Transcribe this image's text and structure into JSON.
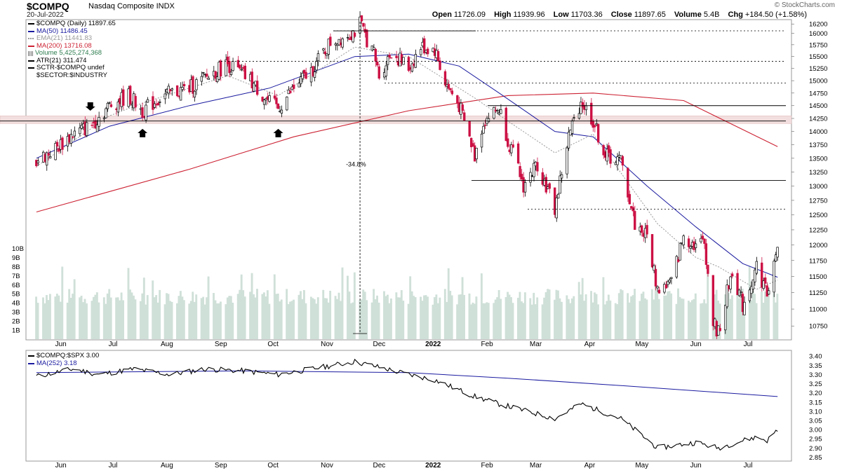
{
  "header": {
    "ticker": "$COMPQ",
    "description": "Nasdaq Composite INDX",
    "date": "20-Jul-2022",
    "open_label": "Open",
    "open": "11726.09",
    "high_label": "High",
    "high": "11939.96",
    "low_label": "Low",
    "low": "11703.36",
    "close_label": "Close",
    "close": "11897.65",
    "volume_label": "Volume",
    "volume": "5.4B",
    "chg_label": "Chg",
    "chg": "+184.50 (+1.58%)",
    "watermark": "© StockCharts.com"
  },
  "legend_main": [
    {
      "text": "$COMPQ (Daily) 11897.65",
      "color": "#000000",
      "kind": "line"
    },
    {
      "text": "MA(50) 11486.45",
      "color": "#1a1aa0",
      "kind": "line"
    },
    {
      "text": "EMA(21) 11441.83",
      "color": "#999999",
      "kind": "dotted"
    },
    {
      "text": "MA(200) 13716.08",
      "color": "#cc2233",
      "kind": "line"
    },
    {
      "text": "Volume 5,425,274,368",
      "color": "#2e7d4f",
      "kind": "bars"
    },
    {
      "text": "ATR(21) 311.474",
      "color": "#000000",
      "kind": "line"
    },
    {
      "text": "SCTR-$COMPQ undef",
      "color": "#000000",
      "kind": "line"
    },
    {
      "text": "$SECTOR:$INDUSTRY",
      "color": "#000000",
      "kind": "none"
    }
  ],
  "legend_rs": [
    {
      "text": "$COMPQ:$SPX 3.00",
      "color": "#000000",
      "kind": "line"
    },
    {
      "text": "MA(252) 3.18",
      "color": "#1a1aa0",
      "kind": "line"
    }
  ],
  "chart_data": [
    {
      "type": "candlestick",
      "title": "$COMPQ Nasdaq Composite INDX (Daily)",
      "x_labels": [
        "Jun",
        "Jul",
        "Aug",
        "Sep",
        "Oct",
        "Nov",
        "Dec",
        "2022",
        "Feb",
        "Mar",
        "Apr",
        "May",
        "Jun",
        "Jul"
      ],
      "y_ticks": [
        16200,
        16000,
        15750,
        15500,
        15250,
        15000,
        14750,
        14500,
        14250,
        14000,
        13750,
        13500,
        13250,
        13000,
        12750,
        12500,
        12250,
        12000,
        11750,
        11500,
        11250,
        11000,
        10750
      ],
      "ylim": [
        10600,
        16250
      ],
      "scale": "log",
      "grid": false,
      "legend_position": "top-left",
      "colors": {
        "up": "#000000",
        "down": "#cc1144",
        "ma50": "#1a1aa0",
        "ema21": "#999999",
        "ma200": "#cc2233",
        "volume": "#cfe0d8",
        "support_band": "#f2dede"
      },
      "price_path": [
        [
          "2021-05-20",
          13450
        ],
        [
          "2021-06-01",
          13700
        ],
        [
          "2021-06-10",
          13950
        ],
        [
          "2021-06-20",
          14100
        ],
        [
          "2021-07-01",
          14500
        ],
        [
          "2021-07-12",
          14700
        ],
        [
          "2021-07-20",
          14400
        ],
        [
          "2021-08-01",
          14700
        ],
        [
          "2021-08-16",
          14850
        ],
        [
          "2021-08-25",
          15050
        ],
        [
          "2021-09-07",
          15350
        ],
        [
          "2021-09-20",
          15000
        ],
        [
          "2021-10-01",
          14550
        ],
        [
          "2021-10-06",
          14450
        ],
        [
          "2021-10-15",
          14850
        ],
        [
          "2021-10-25",
          15200
        ],
        [
          "2021-11-05",
          15800
        ],
        [
          "2021-11-19",
          16050
        ],
        [
          "2021-11-22",
          16200
        ],
        [
          "2021-11-30",
          15550
        ],
        [
          "2021-12-03",
          15100
        ],
        [
          "2021-12-10",
          15600
        ],
        [
          "2021-12-20",
          15250
        ],
        [
          "2021-12-27",
          15700
        ],
        [
          "2022-01-04",
          15650
        ],
        [
          "2022-01-10",
          14950
        ],
        [
          "2022-01-18",
          14500
        ],
        [
          "2022-01-27",
          13550
        ],
        [
          "2022-02-01",
          14200
        ],
        [
          "2022-02-10",
          14450
        ],
        [
          "2022-02-15",
          13850
        ],
        [
          "2022-02-24",
          13000
        ],
        [
          "2022-03-04",
          13400
        ],
        [
          "2022-03-14",
          12600
        ],
        [
          "2022-03-22",
          13900
        ],
        [
          "2022-03-29",
          14600
        ],
        [
          "2022-04-05",
          14200
        ],
        [
          "2022-04-12",
          13550
        ],
        [
          "2022-04-21",
          13450
        ],
        [
          "2022-04-29",
          12350
        ],
        [
          "2022-05-06",
          12150
        ],
        [
          "2022-05-12",
          11300
        ],
        [
          "2022-05-20",
          11400
        ],
        [
          "2022-05-27",
          12150
        ],
        [
          "2022-06-03",
          12000
        ],
        [
          "2022-06-08",
          12050
        ],
        [
          "2022-06-13",
          10800
        ],
        [
          "2022-06-16",
          10650
        ],
        [
          "2022-06-24",
          11600
        ],
        [
          "2022-06-30",
          11050
        ],
        [
          "2022-07-08",
          11650
        ],
        [
          "2022-07-14",
          11250
        ],
        [
          "2022-07-20",
          11898
        ]
      ],
      "ma50_path": [
        [
          "2021-05-20",
          13500
        ],
        [
          "2021-07-01",
          14100
        ],
        [
          "2021-08-16",
          14500
        ],
        [
          "2021-10-01",
          14850
        ],
        [
          "2021-11-19",
          15500
        ],
        [
          "2021-12-20",
          15550
        ],
        [
          "2022-01-18",
          15300
        ],
        [
          "2022-02-10",
          14750
        ],
        [
          "2022-03-14",
          14000
        ],
        [
          "2022-04-05",
          13900
        ],
        [
          "2022-05-06",
          13000
        ],
        [
          "2022-06-03",
          12300
        ],
        [
          "2022-06-30",
          11700
        ],
        [
          "2022-07-20",
          11486
        ]
      ],
      "ema21_path": [
        [
          "2021-05-20",
          13350
        ],
        [
          "2021-07-01",
          14300
        ],
        [
          "2021-07-20",
          14550
        ],
        [
          "2021-09-07",
          15100
        ],
        [
          "2021-10-06",
          14700
        ],
        [
          "2021-11-19",
          15700
        ],
        [
          "2021-12-20",
          15500
        ],
        [
          "2022-01-27",
          14650
        ],
        [
          "2022-02-15",
          14200
        ],
        [
          "2022-03-14",
          13600
        ],
        [
          "2022-04-05",
          13950
        ],
        [
          "2022-05-12",
          12350
        ],
        [
          "2022-06-03",
          11800
        ],
        [
          "2022-06-16",
          11650
        ],
        [
          "2022-07-08",
          11300
        ],
        [
          "2022-07-20",
          11442
        ]
      ],
      "ma200_path": [
        [
          "2021-05-20",
          12550
        ],
        [
          "2021-08-16",
          13300
        ],
        [
          "2021-10-15",
          13900
        ],
        [
          "2021-12-20",
          14400
        ],
        [
          "2022-02-15",
          14700
        ],
        [
          "2022-04-05",
          14750
        ],
        [
          "2022-05-27",
          14600
        ],
        [
          "2022-07-20",
          13716
        ]
      ],
      "annotations": {
        "drawdown_label": "-34.8%",
        "support_band": [
          14150,
          14300
        ],
        "dotted_levels": [
          16050,
          15400,
          14950,
          12600
        ],
        "solid_levels": [
          14500,
          14200,
          13100
        ]
      },
      "volume": {
        "y_ticks_billions": [
          10,
          9,
          8,
          7,
          6,
          5,
          4,
          3,
          2,
          1
        ],
        "tick_labels": [
          "10B",
          "9B",
          "8B",
          "7B",
          "6B",
          "5B",
          "4B",
          "3B",
          "2B",
          "1B"
        ],
        "typical_range_billions": [
          4,
          6
        ],
        "latest_billions": 5.4
      }
    },
    {
      "type": "line",
      "title": "$COMPQ:$SPX 3.00",
      "x_labels": [
        "Jun",
        "Jul",
        "Aug",
        "Sep",
        "Oct",
        "Nov",
        "Dec",
        "2022",
        "Feb",
        "Mar",
        "Apr",
        "May",
        "Jun",
        "Jul"
      ],
      "y_ticks": [
        3.4,
        3.35,
        3.3,
        3.25,
        3.2,
        3.15,
        3.1,
        3.05,
        3.0,
        2.95,
        2.9,
        2.85
      ],
      "y_tick_labels": [
        "3.40",
        "3.35",
        "3.30",
        "3.25",
        "3.20",
        "3.15",
        "3.10",
        "3.05",
        "3.00",
        "2.95",
        "2.90",
        "2.85"
      ],
      "ylim": [
        2.84,
        3.42
      ],
      "series": [
        {
          "name": "$COMPQ:$SPX",
          "color": "#000000",
          "values": [
            [
              "2021-05-20",
              3.29
            ],
            [
              "2021-06-10",
              3.33
            ],
            [
              "2021-06-25",
              3.3
            ],
            [
              "2021-07-15",
              3.33
            ],
            [
              "2021-08-05",
              3.3
            ],
            [
              "2021-08-25",
              3.33
            ],
            [
              "2021-09-15",
              3.32
            ],
            [
              "2021-10-06",
              3.3
            ],
            [
              "2021-10-25",
              3.33
            ],
            [
              "2021-11-19",
              3.37
            ],
            [
              "2021-12-03",
              3.34
            ],
            [
              "2021-12-20",
              3.3
            ],
            [
              "2022-01-04",
              3.27
            ],
            [
              "2022-01-27",
              3.18
            ],
            [
              "2022-02-10",
              3.14
            ],
            [
              "2022-03-14",
              3.06
            ],
            [
              "2022-03-29",
              3.14
            ],
            [
              "2022-04-21",
              3.06
            ],
            [
              "2022-05-12",
              2.9
            ],
            [
              "2022-06-03",
              2.93
            ],
            [
              "2022-06-16",
              2.9
            ],
            [
              "2022-06-30",
              2.94
            ],
            [
              "2022-07-08",
              2.96
            ],
            [
              "2022-07-14",
              2.94
            ],
            [
              "2022-07-20",
              3.0
            ]
          ]
        },
        {
          "name": "MA(252)",
          "color": "#1a1aa0",
          "values": [
            [
              "2021-05-20",
              3.31
            ],
            [
              "2021-09-15",
              3.32
            ],
            [
              "2021-12-20",
              3.31
            ],
            [
              "2022-02-15",
              3.28
            ],
            [
              "2022-04-21",
              3.24
            ],
            [
              "2022-07-20",
              3.18
            ]
          ]
        }
      ]
    }
  ]
}
